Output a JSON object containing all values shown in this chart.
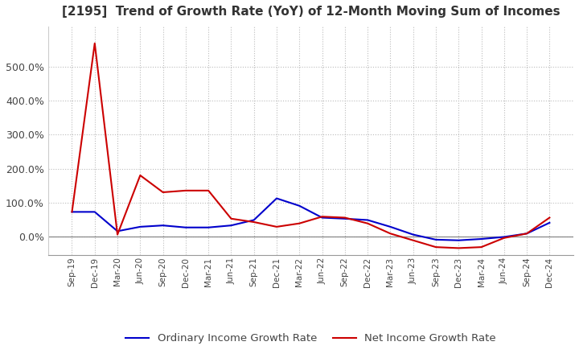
{
  "title": "[2195]  Trend of Growth Rate (YoY) of 12-Month Moving Sum of Incomes",
  "title_fontsize": 11,
  "background_color": "#ffffff",
  "grid_color": "#bbbbbb",
  "legend_labels": [
    "Ordinary Income Growth Rate",
    "Net Income Growth Rate"
  ],
  "legend_colors": [
    "#0000cc",
    "#cc0000"
  ],
  "x_labels": [
    "Sep-19",
    "Dec-19",
    "Mar-20",
    "Jun-20",
    "Sep-20",
    "Dec-20",
    "Mar-21",
    "Jun-21",
    "Sep-21",
    "Dec-21",
    "Mar-22",
    "Jun-22",
    "Sep-22",
    "Dec-22",
    "Mar-23",
    "Jun-23",
    "Sep-23",
    "Dec-23",
    "Mar-24",
    "Jun-24",
    "Sep-24",
    "Dec-24"
  ],
  "ordinary_income": [
    0.72,
    0.72,
    0.15,
    0.28,
    0.32,
    0.26,
    0.26,
    0.32,
    0.48,
    1.12,
    0.9,
    0.55,
    0.52,
    0.48,
    0.28,
    0.05,
    -0.1,
    -0.12,
    -0.08,
    -0.02,
    0.08,
    0.4
  ],
  "net_income": [
    0.72,
    5.7,
    0.05,
    1.8,
    1.3,
    1.35,
    1.35,
    0.52,
    0.42,
    0.28,
    0.38,
    0.58,
    0.55,
    0.38,
    0.08,
    -0.12,
    -0.32,
    -0.35,
    -0.32,
    -0.05,
    0.08,
    0.55
  ],
  "yticks": [
    0.0,
    1.0,
    2.0,
    3.0,
    4.0,
    5.0
  ],
  "ytick_labels": [
    "0.0%",
    "100.0%",
    "200.0%",
    "300.0%",
    "400.0%",
    "500.0%"
  ],
  "ylim_min": -0.55,
  "ylim_max": 6.2
}
